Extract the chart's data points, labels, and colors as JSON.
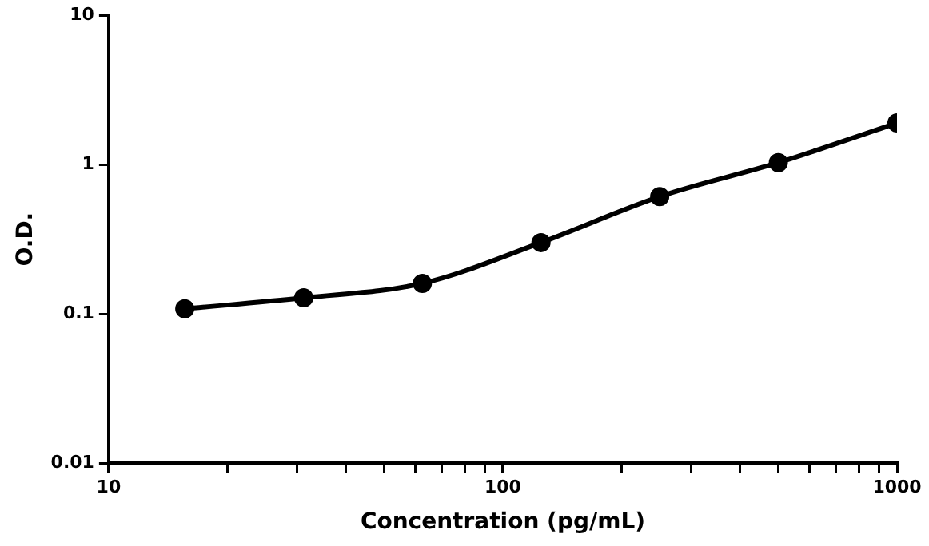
{
  "chart_data": {
    "type": "line",
    "xlabel": "Concentration (pg/mL)",
    "ylabel": "O.D.",
    "x": [
      15.6,
      31.25,
      62.5,
      125,
      250,
      500,
      1000
    ],
    "series": [
      {
        "color": "#000000",
        "values": [
          0.108,
          0.128,
          0.16,
          0.3,
          0.61,
          1.03,
          1.9
        ]
      }
    ],
    "log": "xy",
    "xlim": [
      10,
      1000
    ],
    "ylim": [
      0.01,
      10
    ],
    "xticks": [
      10,
      {
        "value": 20,
        "label": null
      },
      {
        "value": 30,
        "label": null
      },
      {
        "value": 40,
        "label": null
      },
      {
        "value": 50,
        "label": null
      },
      {
        "value": 60,
        "label": null
      },
      {
        "value": 70,
        "label": null
      },
      {
        "value": 80,
        "label": null
      },
      {
        "value": 90,
        "label": null
      },
      100,
      {
        "value": 200,
        "label": null
      },
      {
        "value": 300,
        "label": null
      },
      {
        "value": 400,
        "label": null
      },
      {
        "value": 500,
        "label": null
      },
      {
        "value": 600,
        "label": null
      },
      {
        "value": 700,
        "label": null
      },
      {
        "value": 800,
        "label": null
      },
      {
        "value": 900,
        "label": null
      },
      1000
    ],
    "yticks": [
      0.01,
      0.1,
      1,
      10
    ],
    "grid": false,
    "legend": false,
    "marker": "circle",
    "line_style": "solid"
  }
}
